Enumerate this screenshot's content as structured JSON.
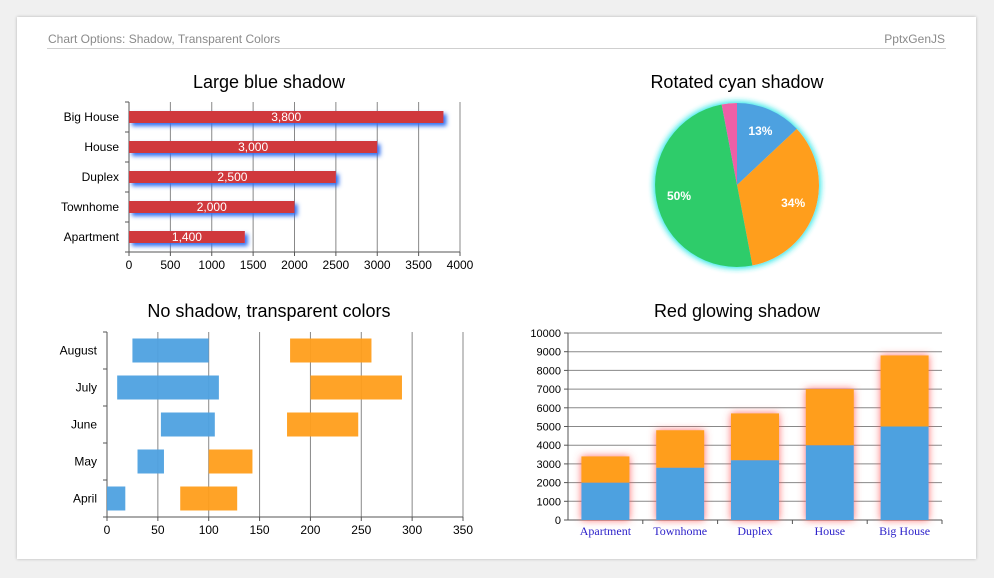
{
  "header": {
    "title": "Chart Options: Shadow, Transparent Colors",
    "brand": "PptxGenJS"
  },
  "chart_data": [
    {
      "type": "bar",
      "orientation": "horizontal",
      "title": "Large blue shadow",
      "categories": [
        "Apartment",
        "Townhome",
        "Duplex",
        "House",
        "Big House"
      ],
      "values": [
        1400,
        2000,
        2500,
        3000,
        3800
      ],
      "data_labels": [
        "1,400",
        "2,000",
        "2,500",
        "3,000",
        "3,800"
      ],
      "xlim": [
        0,
        4000
      ],
      "x_ticks": [
        "0",
        "500",
        "1000",
        "1500",
        "2000",
        "2500",
        "3000",
        "3500",
        "4000"
      ],
      "grid": "vertical",
      "colors": {
        "bar": "#d0393e",
        "shadow": "#2f6ff0"
      }
    },
    {
      "type": "pie",
      "title": "Rotated cyan shadow",
      "slices": [
        {
          "value": 13,
          "label": "13%",
          "color": "#4ea1e0"
        },
        {
          "value": 34,
          "label": "34%",
          "color": "#ff9e1b"
        },
        {
          "value": 50,
          "label": "50%",
          "color": "#2ecc6a"
        },
        {
          "value": 3,
          "label": "",
          "color": "#ee5fa7"
        }
      ],
      "colors": {
        "shadow": "#35e8e8"
      }
    },
    {
      "type": "bar",
      "orientation": "horizontal",
      "title": "No shadow, transparent colors",
      "categories": [
        "April",
        "May",
        "June",
        "July",
        "August"
      ],
      "series": [
        {
          "color": "#4ea1e0",
          "ranges": [
            [
              0,
              18
            ],
            [
              30,
              56
            ],
            [
              53,
              106
            ],
            [
              10,
              110
            ],
            [
              25,
              100
            ]
          ]
        },
        {
          "color": "#ff9e1b",
          "ranges": [
            [
              72,
              128
            ],
            [
              100,
              143
            ],
            [
              177,
              247
            ],
            [
              200,
              290
            ],
            [
              180,
              260
            ]
          ]
        }
      ],
      "xlim": [
        0,
        350
      ],
      "x_ticks": [
        "0",
        "50",
        "100",
        "150",
        "200",
        "250",
        "300",
        "350"
      ],
      "grid": "vertical"
    },
    {
      "type": "bar",
      "stacked": true,
      "title": "Red glowing shadow",
      "categories": [
        "Apartment",
        "Townhome",
        "Duplex",
        "House",
        "Big House"
      ],
      "series": [
        {
          "color": "#4ea1e0",
          "values": [
            2000,
            2800,
            3200,
            4000,
            5000
          ]
        },
        {
          "color": "#ff9e1b",
          "values": [
            1400,
            2000,
            2500,
            3000,
            3800
          ]
        }
      ],
      "ylim": [
        0,
        10000
      ],
      "y_ticks": [
        "0",
        "1000",
        "2000",
        "3000",
        "4000",
        "5000",
        "6000",
        "7000",
        "8000",
        "9000",
        "10000"
      ],
      "grid": "horizontal",
      "colors": {
        "category_labels": "#2a1fc9",
        "shadow": "#ff5050"
      }
    }
  ]
}
